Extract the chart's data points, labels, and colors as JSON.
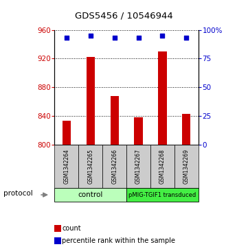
{
  "title": "GDS5456 / 10546944",
  "samples": [
    "GSM1342264",
    "GSM1342265",
    "GSM1342266",
    "GSM1342267",
    "GSM1342268",
    "GSM1342269"
  ],
  "counts": [
    833,
    922,
    868,
    838,
    930,
    843
  ],
  "percentile_ranks": [
    93,
    95,
    93,
    93,
    95,
    93
  ],
  "ymin": 800,
  "ymax": 960,
  "yticks": [
    800,
    840,
    880,
    920,
    960
  ],
  "y2min": 0,
  "y2max": 100,
  "y2ticks": [
    0,
    25,
    50,
    75,
    100
  ],
  "y2ticklabels": [
    "0",
    "25",
    "50",
    "75",
    "100%"
  ],
  "bar_color": "#cc0000",
  "dot_color": "#0000cc",
  "bar_width": 0.35,
  "legend_bar_label": "count",
  "legend_dot_label": "percentile rank within the sample",
  "protocol_label": "protocol",
  "tick_label_color_left": "#cc0000",
  "tick_label_color_right": "#0000cc",
  "grid_color": "#000000",
  "sample_box_color": "#cccccc",
  "proto_color_control": "#bbffbb",
  "proto_color_pmig": "#44ee44"
}
